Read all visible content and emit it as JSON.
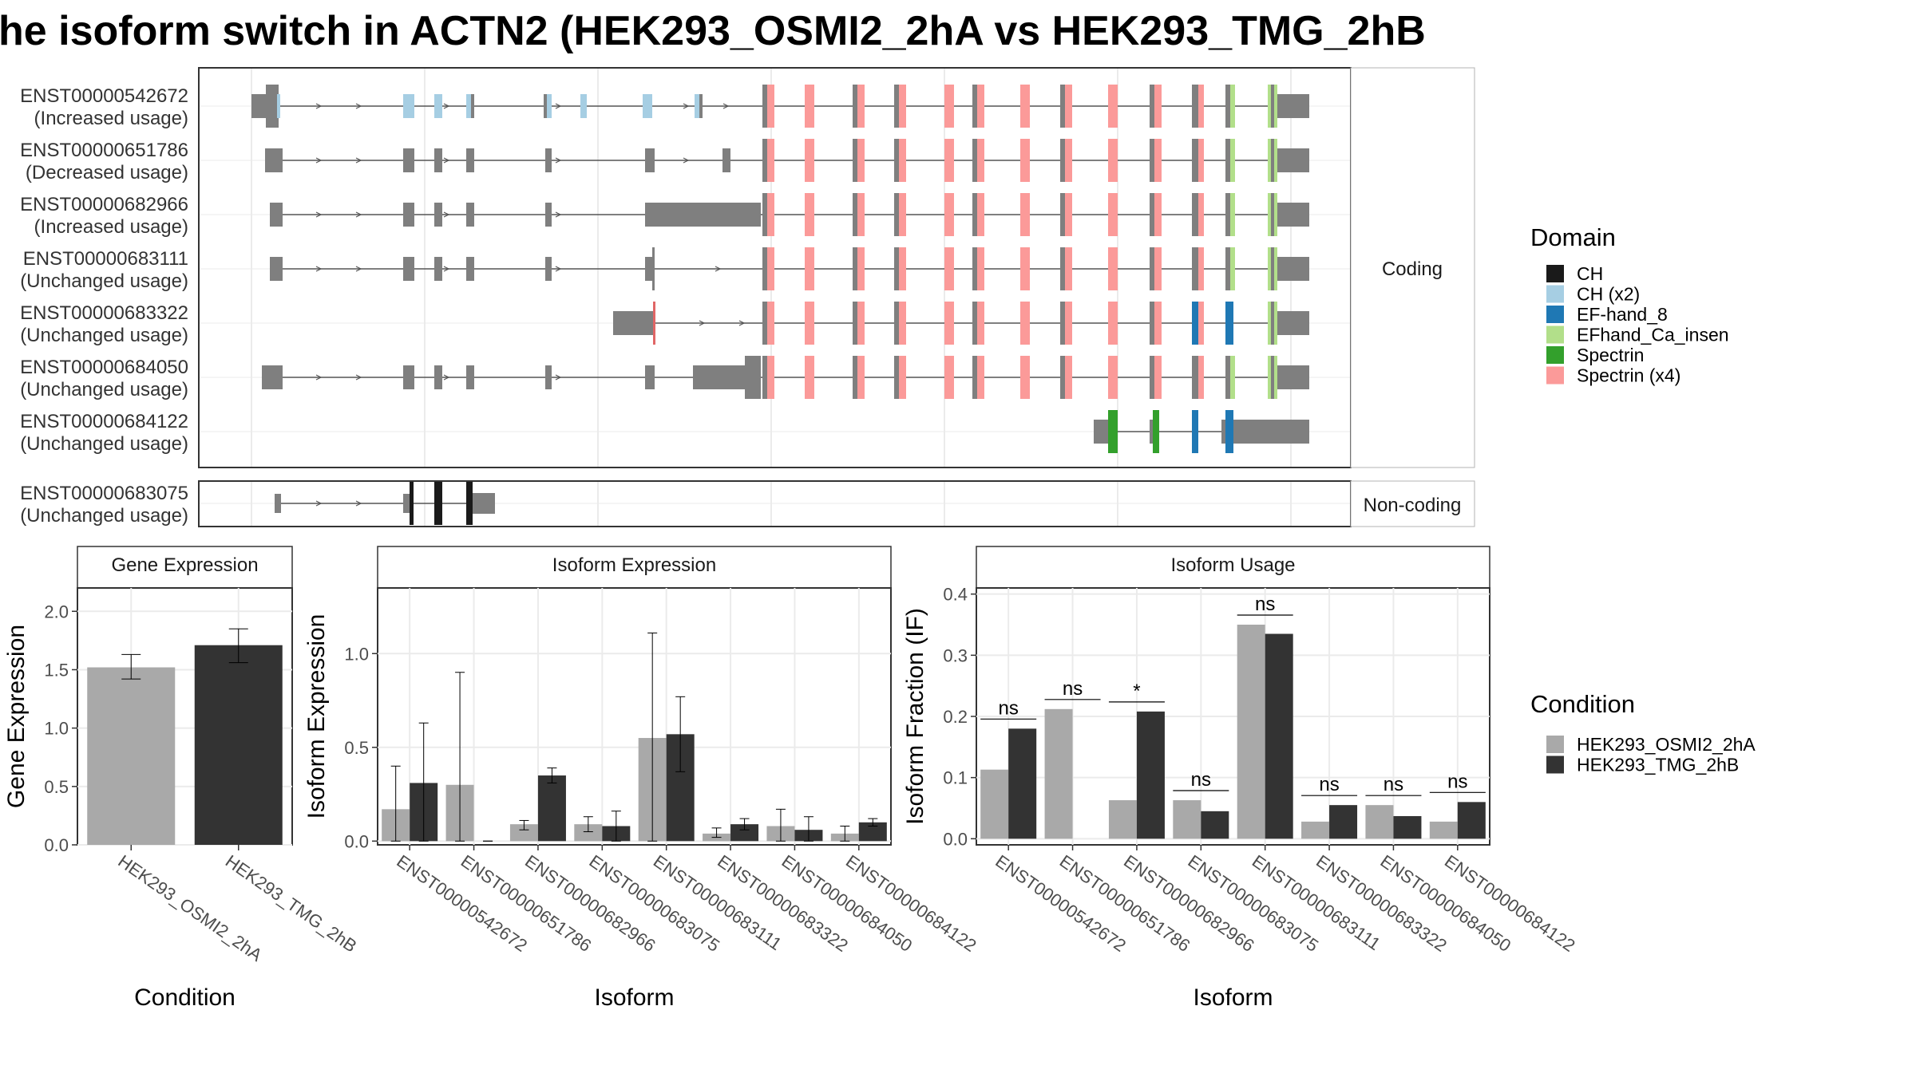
{
  "title": "he isoform switch in ACTN2 (HEK293_OSMI2_2hA vs HEK293_TMG_2hB",
  "colors": {
    "HEK293_OSMI2_2hA": "#a9a9a9",
    "HEK293_TMG_2hB": "#333333",
    "CH": "#1a1a1a",
    "CH (x2)": "#a6cee3",
    "EF-hand_8": "#1f78b4",
    "EFhand_Ca_insen": "#b2df8a",
    "Spectrin": "#33a02c",
    "Spectrin (x4)": "#fb9a99",
    "exon": "#7f7f7f"
  },
  "structure": {
    "coding_strip": "Coding",
    "noncoding_strip": "Non-coding",
    "transcripts": [
      {
        "id": "ENST00000542672",
        "usage": "(Increased usage)",
        "group": "Coding"
      },
      {
        "id": "ENST00000651786",
        "usage": "(Decreased usage)",
        "group": "Coding"
      },
      {
        "id": "ENST00000682966",
        "usage": "(Increased usage)",
        "group": "Coding"
      },
      {
        "id": "ENST00000683111",
        "usage": "(Unchanged usage)",
        "group": "Coding"
      },
      {
        "id": "ENST00000683322",
        "usage": "(Unchanged usage)",
        "group": "Coding"
      },
      {
        "id": "ENST00000684050",
        "usage": "(Unchanged usage)",
        "group": "Coding"
      },
      {
        "id": "ENST00000684122",
        "usage": "(Unchanged usage)",
        "group": "Coding"
      },
      {
        "id": "ENST00000683075",
        "usage": "(Unchanged usage)",
        "group": "Non-coding"
      }
    ]
  },
  "legend_domain": {
    "title": "Domain",
    "items": [
      "CH",
      "CH (x2)",
      "EF-hand_8",
      "EFhand_Ca_insen",
      "Spectrin",
      "Spectrin (x4)"
    ]
  },
  "legend_condition": {
    "title": "Condition",
    "items": [
      "HEK293_OSMI2_2hA",
      "HEK293_TMG_2hB"
    ]
  },
  "chart_data": [
    {
      "type": "bar",
      "title": "Gene Expression",
      "xlabel": "Condition",
      "ylabel": "Gene Expression",
      "ylim": [
        0,
        2.2
      ],
      "yticks": [
        "0.0",
        "0.5",
        "1.0",
        "1.5",
        "2.0"
      ],
      "categories": [
        "HEK293_OSMI2_2hA",
        "HEK293_TMG_2hB"
      ],
      "values": [
        1.52,
        1.71
      ],
      "error_low": [
        1.42,
        1.56
      ],
      "error_high": [
        1.63,
        1.85
      ]
    },
    {
      "type": "bar",
      "title": "Isoform Expression",
      "xlabel": "Isoform",
      "ylabel": "Isoform Expression",
      "ylim": [
        -0.02,
        1.35
      ],
      "yticks": [
        "0.0",
        "0.5",
        "1.0"
      ],
      "categories": [
        "ENST00000542672",
        "ENST00000651786",
        "ENST00000682966",
        "ENST00000683075",
        "ENST00000683111",
        "ENST00000683322",
        "ENST00000684050",
        "ENST00000684122"
      ],
      "series": [
        {
          "name": "HEK293_OSMI2_2hA",
          "values": [
            0.17,
            0.3,
            0.09,
            0.09,
            0.55,
            0.04,
            0.08,
            0.04
          ],
          "error_low": [
            0.0,
            0.0,
            0.06,
            0.05,
            0.0,
            0.02,
            0.0,
            0.0
          ],
          "error_high": [
            0.4,
            0.9,
            0.11,
            0.13,
            1.11,
            0.07,
            0.17,
            0.08
          ]
        },
        {
          "name": "HEK293_TMG_2hB",
          "values": [
            0.31,
            0.0,
            0.35,
            0.08,
            0.57,
            0.09,
            0.06,
            0.1
          ],
          "error_low": [
            0.0,
            0.0,
            0.31,
            0.0,
            0.37,
            0.06,
            0.0,
            0.08
          ],
          "error_high": [
            0.63,
            0.0,
            0.39,
            0.16,
            0.77,
            0.12,
            0.13,
            0.12
          ]
        }
      ]
    },
    {
      "type": "bar",
      "title": "Isoform Usage",
      "xlabel": "Isoform",
      "ylabel": "Isoform Fraction (IF)",
      "ylim": [
        -0.01,
        0.41
      ],
      "yticks": [
        "0.0",
        "0.1",
        "0.2",
        "0.3",
        "0.4"
      ],
      "categories": [
        "ENST00000542672",
        "ENST00000651786",
        "ENST00000682966",
        "ENST00000683075",
        "ENST00000683111",
        "ENST00000683322",
        "ENST00000684050",
        "ENST00000684122"
      ],
      "series": [
        {
          "name": "HEK293_OSMI2_2hA",
          "values": [
            0.113,
            0.212,
            0.063,
            0.063,
            0.35,
            0.028,
            0.055,
            0.028
          ]
        },
        {
          "name": "HEK293_TMG_2hB",
          "values": [
            0.18,
            0.0,
            0.208,
            0.045,
            0.335,
            0.055,
            0.037,
            0.06
          ]
        }
      ],
      "significance": [
        "ns",
        "ns",
        "*",
        "ns",
        "ns",
        "ns",
        "ns",
        "ns"
      ]
    }
  ]
}
